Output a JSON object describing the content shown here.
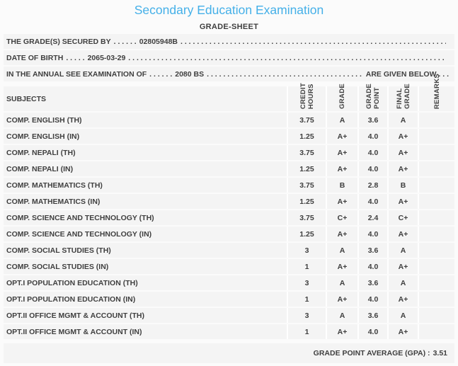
{
  "header": {
    "title": "Secondary Education Examination",
    "subtitle": "GRADE-SHEET"
  },
  "colors": {
    "title_blue": "#45b0e8",
    "text_dark": "#3f3f3f",
    "row_bg": "#f4f4f4"
  },
  "info": {
    "fill": ". . . . . . . . . . . . . . . . . . . . . . . . . . . . . . . . . . . . . . . . . . . . . . . . . . . . . . . . . . . . . . . . . . . . . . . . . . . . . . . . . . . . . . . . . . . . . . . . . . . . . . . . . . . . . . . . . . . .",
    "lines": [
      {
        "label": "THE GRADE(S) SECURED BY",
        "dots": ". . . . . .",
        "value": "02805948B",
        "tail": ""
      },
      {
        "label": "DATE OF BIRTH",
        "dots": ". . . . .",
        "value": "2065-03-29",
        "tail": ""
      },
      {
        "label": "IN THE ANNUAL SEE EXAMINATION OF",
        "dots": ". . . . . .",
        "value": "2080 BS",
        "tail": "ARE GIVEN BELOW . . ."
      }
    ]
  },
  "table": {
    "subjects_header": "SUBJECTS",
    "columns": [
      "CREDIT\nHOURS",
      "GRADE",
      "GRADE\nPOINT",
      "FINAL\nGRADE",
      "REMARKS"
    ],
    "rows": [
      {
        "subject": "COMP. ENGLISH (TH)",
        "credit": "3.75",
        "grade": "A",
        "point": "3.6",
        "final": "A",
        "remarks": ""
      },
      {
        "subject": "COMP. ENGLISH (IN)",
        "credit": "1.25",
        "grade": "A+",
        "point": "4.0",
        "final": "A+",
        "remarks": ""
      },
      {
        "subject": "COMP. NEPALI (TH)",
        "credit": "3.75",
        "grade": "A+",
        "point": "4.0",
        "final": "A+",
        "remarks": ""
      },
      {
        "subject": "COMP. NEPALI (IN)",
        "credit": "1.25",
        "grade": "A+",
        "point": "4.0",
        "final": "A+",
        "remarks": ""
      },
      {
        "subject": "COMP. MATHEMATICS (TH)",
        "credit": "3.75",
        "grade": "B",
        "point": "2.8",
        "final": "B",
        "remarks": ""
      },
      {
        "subject": "COMP. MATHEMATICS (IN)",
        "credit": "1.25",
        "grade": "A+",
        "point": "4.0",
        "final": "A+",
        "remarks": ""
      },
      {
        "subject": "COMP. SCIENCE AND TECHNOLOGY (TH)",
        "credit": "3.75",
        "grade": "C+",
        "point": "2.4",
        "final": "C+",
        "remarks": ""
      },
      {
        "subject": "COMP. SCIENCE AND TECHNOLOGY (IN)",
        "credit": "1.25",
        "grade": "A+",
        "point": "4.0",
        "final": "A+",
        "remarks": ""
      },
      {
        "subject": "COMP. SOCIAL STUDIES (TH)",
        "credit": "3",
        "grade": "A",
        "point": "3.6",
        "final": "A",
        "remarks": ""
      },
      {
        "subject": "COMP. SOCIAL STUDIES (IN)",
        "credit": "1",
        "grade": "A+",
        "point": "4.0",
        "final": "A+",
        "remarks": ""
      },
      {
        "subject": "OPT.I POPULATION EDUCATION (TH)",
        "credit": "3",
        "grade": "A",
        "point": "3.6",
        "final": "A",
        "remarks": ""
      },
      {
        "subject": "OPT.I POPULATION EDUCATION (IN)",
        "credit": "1",
        "grade": "A+",
        "point": "4.0",
        "final": "A+",
        "remarks": ""
      },
      {
        "subject": "OPT.II OFFICE MGMT & ACCOUNT (TH)",
        "credit": "3",
        "grade": "A",
        "point": "3.6",
        "final": "A",
        "remarks": ""
      },
      {
        "subject": "OPT.II OFFICE MGMT & ACCOUNT (IN)",
        "credit": "1",
        "grade": "A+",
        "point": "4.0",
        "final": "A+",
        "remarks": ""
      }
    ]
  },
  "footer": {
    "gpa_label": "GRADE POINT AVERAGE (GPA) :",
    "gpa_value": "3.51"
  }
}
